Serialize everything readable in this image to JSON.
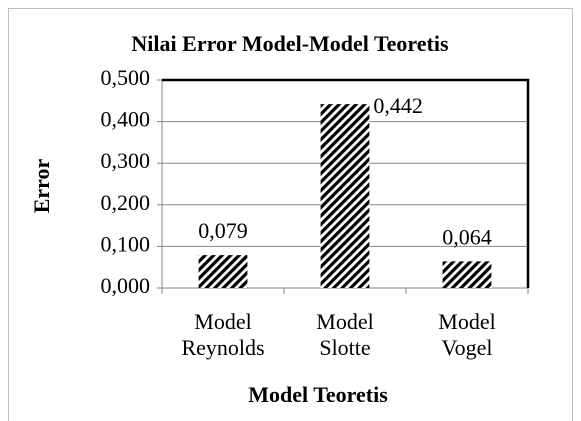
{
  "chart_data": {
    "type": "bar",
    "title": "Nilai Error Model-Model Teoretis",
    "x_label": "Model Teoretis",
    "y_label": "Error",
    "categories": [
      "Model Reynolds",
      "Model Slotte",
      "Model Vogel"
    ],
    "values": [
      0.079,
      0.442,
      0.064
    ],
    "value_labels": [
      "0,079",
      "0,442",
      "0,064"
    ],
    "color": "#000000",
    "ylim": [
      0,
      0.5
    ],
    "yticks": [
      {
        "value": 0,
        "label": "0,000"
      },
      {
        "value": 0.1,
        "label": "0,100"
      },
      {
        "value": 0.2,
        "label": "0,200"
      },
      {
        "value": 0.3,
        "label": "0,300"
      },
      {
        "value": 0.4,
        "label": "0,400"
      },
      {
        "value": 0.5,
        "label": "0,500"
      }
    ],
    "grid": true
  }
}
